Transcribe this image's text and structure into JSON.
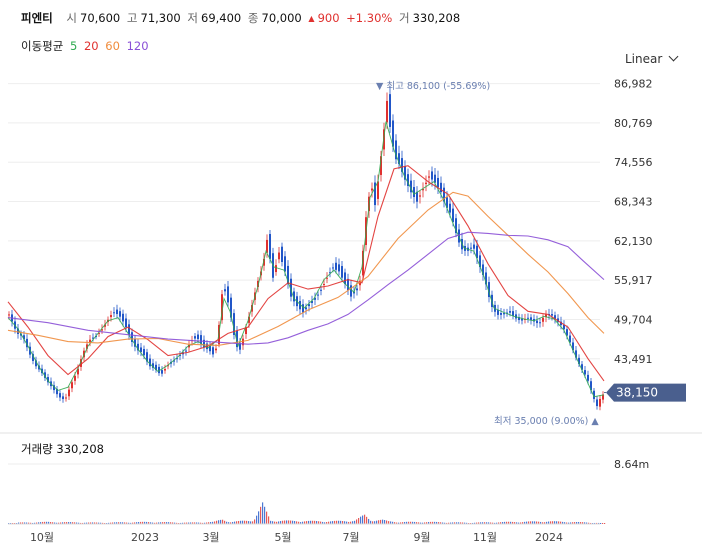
{
  "header": {
    "name": "피엔티",
    "open_label": "시",
    "open": "70,600",
    "high_label": "고",
    "high": "71,300",
    "low_label": "저",
    "low": "69,400",
    "close_label": "종",
    "close": "70,000",
    "change_arrow": "▲",
    "change": "900",
    "change_pct": "+1.30%",
    "volume_label": "거",
    "volume": "330,208"
  },
  "ma_legend": {
    "label": "이동평균",
    "items": [
      {
        "period": "5",
        "color": "#2eaa4f"
      },
      {
        "period": "20",
        "color": "#e0312f"
      },
      {
        "period": "60",
        "color": "#f08c3c"
      },
      {
        "period": "120",
        "color": "#8a4fd6"
      }
    ]
  },
  "scale_menu": {
    "label": "Linear"
  },
  "volume_panel": {
    "label": "거래량",
    "value": "330,208",
    "axis_tick": "8.64m"
  },
  "annotations": {
    "max_label": "최고",
    "max_value": "86,100 (-55.69%)",
    "min_label": "최저",
    "min_value": "35,000 (9.00%)"
  },
  "current_price_tag": "38,150",
  "colors": {
    "up": "#e0312f",
    "down": "#2156c8",
    "grid": "#eeeeee",
    "tag": "#4a5f8e",
    "annotation": "#6a7fb0"
  },
  "chart_data": {
    "type": "candlestick",
    "y_ticks": [
      "86,982",
      "80,769",
      "74,556",
      "68,343",
      "62,130",
      "55,917",
      "49,704",
      "43,491"
    ],
    "ylim": [
      33500,
      88500
    ],
    "x_ticks": [
      "10월",
      "2023",
      "3월",
      "5월",
      "7월",
      "9월",
      "11월",
      "2024"
    ],
    "series": [
      {
        "name": "price",
        "values": [
          [
            0,
            50500
          ],
          [
            4,
            49000
          ],
          [
            8,
            47500
          ],
          [
            14,
            47000
          ],
          [
            20,
            44500
          ],
          [
            26,
            42500
          ],
          [
            32,
            41500
          ],
          [
            38,
            40000
          ],
          [
            44,
            38800
          ],
          [
            50,
            37500
          ],
          [
            56,
            37000
          ],
          [
            62,
            39500
          ],
          [
            68,
            41500
          ],
          [
            74,
            44500
          ],
          [
            80,
            46500
          ],
          [
            86,
            47000
          ],
          [
            92,
            48000
          ],
          [
            98,
            49500
          ],
          [
            104,
            51000
          ],
          [
            110,
            50500
          ],
          [
            116,
            49000
          ],
          [
            122,
            46500
          ],
          [
            128,
            45000
          ],
          [
            134,
            44500
          ],
          [
            140,
            42500
          ],
          [
            146,
            42000
          ],
          [
            152,
            41000
          ],
          [
            158,
            42500
          ],
          [
            164,
            43000
          ],
          [
            170,
            44000
          ],
          [
            176,
            44500
          ],
          [
            182,
            46500
          ],
          [
            188,
            47000
          ],
          [
            194,
            45500
          ],
          [
            200,
            45000
          ],
          [
            206,
            44000
          ],
          [
            210,
            49000
          ],
          [
            214,
            55500
          ],
          [
            220,
            52000
          ],
          [
            226,
            46500
          ],
          [
            230,
            44500
          ],
          [
            236,
            48000
          ],
          [
            242,
            51500
          ],
          [
            248,
            55500
          ],
          [
            254,
            58500
          ],
          [
            258,
            62500
          ],
          [
            264,
            56500
          ],
          [
            270,
            60500
          ],
          [
            276,
            57500
          ],
          [
            282,
            53500
          ],
          [
            288,
            52000
          ],
          [
            294,
            51000
          ],
          [
            300,
            52000
          ],
          [
            306,
            53000
          ],
          [
            312,
            54500
          ],
          [
            318,
            56500
          ],
          [
            324,
            58000
          ],
          [
            330,
            57500
          ],
          [
            336,
            55500
          ],
          [
            342,
            53500
          ],
          [
            348,
            54500
          ],
          [
            352,
            56500
          ],
          [
            356,
            65000
          ],
          [
            362,
            71500
          ],
          [
            366,
            68000
          ],
          [
            370,
            73000
          ],
          [
            374,
            78500
          ],
          [
            378,
            84500
          ],
          [
            382,
            79000
          ],
          [
            386,
            75500
          ],
          [
            390,
            74500
          ],
          [
            396,
            72000
          ],
          [
            402,
            70000
          ],
          [
            408,
            68500
          ],
          [
            414,
            70500
          ],
          [
            420,
            72500
          ],
          [
            426,
            71500
          ],
          [
            432,
            70000
          ],
          [
            436,
            68000
          ],
          [
            442,
            66500
          ],
          [
            446,
            64000
          ],
          [
            452,
            61000
          ],
          [
            458,
            60500
          ],
          [
            464,
            61500
          ],
          [
            470,
            58500
          ],
          [
            476,
            56000
          ],
          [
            482,
            52000
          ],
          [
            488,
            50500
          ],
          [
            494,
            50500
          ],
          [
            500,
            51000
          ],
          [
            506,
            50000
          ],
          [
            512,
            49500
          ],
          [
            518,
            50000
          ],
          [
            524,
            49500
          ],
          [
            530,
            49000
          ],
          [
            536,
            50500
          ],
          [
            542,
            50500
          ],
          [
            548,
            49500
          ],
          [
            554,
            48500
          ],
          [
            560,
            46500
          ],
          [
            566,
            44000
          ],
          [
            572,
            42000
          ],
          [
            578,
            40500
          ],
          [
            584,
            37500
          ],
          [
            588,
            36000
          ],
          [
            592,
            37500
          ],
          [
            596,
            38150
          ]
        ]
      },
      {
        "name": "5",
        "values": [
          [
            0,
            50000
          ],
          [
            10,
            48200
          ],
          [
            20,
            45500
          ],
          [
            30,
            42500
          ],
          [
            40,
            40000
          ],
          [
            50,
            38500
          ],
          [
            60,
            39000
          ],
          [
            70,
            42000
          ],
          [
            80,
            45500
          ],
          [
            90,
            47500
          ],
          [
            100,
            49500
          ],
          [
            110,
            50000
          ],
          [
            120,
            47500
          ],
          [
            130,
            45000
          ],
          [
            140,
            43000
          ],
          [
            150,
            41500
          ],
          [
            160,
            42500
          ],
          [
            170,
            43800
          ],
          [
            180,
            45500
          ],
          [
            190,
            46200
          ],
          [
            200,
            45200
          ],
          [
            210,
            46500
          ],
          [
            216,
            53000
          ],
          [
            222,
            51000
          ],
          [
            230,
            45500
          ],
          [
            240,
            49500
          ],
          [
            250,
            55000
          ],
          [
            258,
            60500
          ],
          [
            266,
            58000
          ],
          [
            276,
            57500
          ],
          [
            286,
            53000
          ],
          [
            296,
            51500
          ],
          [
            306,
            53000
          ],
          [
            316,
            56000
          ],
          [
            326,
            57500
          ],
          [
            336,
            55500
          ],
          [
            346,
            54000
          ],
          [
            354,
            58000
          ],
          [
            362,
            69000
          ],
          [
            370,
            71500
          ],
          [
            378,
            81000
          ],
          [
            386,
            76500
          ],
          [
            396,
            72500
          ],
          [
            406,
            69500
          ],
          [
            416,
            70500
          ],
          [
            426,
            71500
          ],
          [
            436,
            68500
          ],
          [
            446,
            64500
          ],
          [
            456,
            61000
          ],
          [
            466,
            60500
          ],
          [
            476,
            56500
          ],
          [
            486,
            51500
          ],
          [
            496,
            50800
          ],
          [
            506,
            50200
          ],
          [
            516,
            49800
          ],
          [
            526,
            49500
          ],
          [
            536,
            50200
          ],
          [
            546,
            49800
          ],
          [
            556,
            48000
          ],
          [
            566,
            44500
          ],
          [
            576,
            41000
          ],
          [
            586,
            37500
          ],
          [
            596,
            37800
          ]
        ]
      },
      {
        "name": "20",
        "values": [
          [
            0,
            52500
          ],
          [
            20,
            48500
          ],
          [
            40,
            44000
          ],
          [
            60,
            41000
          ],
          [
            80,
            43500
          ],
          [
            100,
            47000
          ],
          [
            120,
            48500
          ],
          [
            140,
            46500
          ],
          [
            160,
            44000
          ],
          [
            180,
            44500
          ],
          [
            200,
            45500
          ],
          [
            220,
            47500
          ],
          [
            240,
            48500
          ],
          [
            260,
            53000
          ],
          [
            280,
            55500
          ],
          [
            300,
            54500
          ],
          [
            320,
            55000
          ],
          [
            340,
            56000
          ],
          [
            354,
            55500
          ],
          [
            370,
            66000
          ],
          [
            386,
            73500
          ],
          [
            400,
            74000
          ],
          [
            420,
            71500
          ],
          [
            440,
            69500
          ],
          [
            460,
            64500
          ],
          [
            480,
            58500
          ],
          [
            500,
            53500
          ],
          [
            520,
            51000
          ],
          [
            540,
            50500
          ],
          [
            560,
            48500
          ],
          [
            580,
            43500
          ],
          [
            596,
            40000
          ]
        ]
      },
      {
        "name": "60",
        "values": [
          [
            0,
            48000
          ],
          [
            30,
            47200
          ],
          [
            60,
            46200
          ],
          [
            90,
            46000
          ],
          [
            120,
            46600
          ],
          [
            150,
            46700
          ],
          [
            180,
            45800
          ],
          [
            210,
            45600
          ],
          [
            240,
            46400
          ],
          [
            270,
            48600
          ],
          [
            300,
            51200
          ],
          [
            330,
            53200
          ],
          [
            360,
            56500
          ],
          [
            390,
            62500
          ],
          [
            420,
            67000
          ],
          [
            445,
            69800
          ],
          [
            460,
            69200
          ],
          [
            480,
            66000
          ],
          [
            500,
            63000
          ],
          [
            520,
            60000
          ],
          [
            540,
            57200
          ],
          [
            560,
            53800
          ],
          [
            580,
            50000
          ],
          [
            596,
            47500
          ]
        ]
      },
      {
        "name": "120",
        "values": [
          [
            0,
            50000
          ],
          [
            40,
            49200
          ],
          [
            80,
            48000
          ],
          [
            120,
            47300
          ],
          [
            160,
            46600
          ],
          [
            200,
            46200
          ],
          [
            240,
            45800
          ],
          [
            260,
            46000
          ],
          [
            280,
            46800
          ],
          [
            300,
            48000
          ],
          [
            320,
            49000
          ],
          [
            340,
            50500
          ],
          [
            360,
            52800
          ],
          [
            380,
            55200
          ],
          [
            400,
            57500
          ],
          [
            420,
            60000
          ],
          [
            440,
            62500
          ],
          [
            460,
            63500
          ],
          [
            480,
            63300
          ],
          [
            500,
            63000
          ],
          [
            520,
            62900
          ],
          [
            540,
            62300
          ],
          [
            560,
            61200
          ],
          [
            575,
            59000
          ],
          [
            596,
            56000
          ]
        ]
      },
      {
        "name": "volume",
        "values": [
          [
            10,
            0.02
          ],
          [
            40,
            0.03
          ],
          [
            90,
            0.02
          ],
          [
            140,
            0.03
          ],
          [
            180,
            0.02
          ],
          [
            205,
            0.03
          ],
          [
            214,
            0.07
          ],
          [
            222,
            0.03
          ],
          [
            245,
            0.06
          ],
          [
            254,
            0.29
          ],
          [
            262,
            0.05
          ],
          [
            268,
            0.05
          ],
          [
            320,
            0.04
          ],
          [
            346,
            0.05
          ],
          [
            356,
            0.13
          ],
          [
            362,
            0.06
          ],
          [
            374,
            0.06
          ],
          [
            380,
            0.04
          ],
          [
            390,
            0.03
          ],
          [
            420,
            0.03
          ],
          [
            460,
            0.02
          ],
          [
            500,
            0.03
          ],
          [
            540,
            0.04
          ],
          [
            586,
            0.02
          ],
          [
            596,
            0.01
          ]
        ]
      }
    ]
  }
}
